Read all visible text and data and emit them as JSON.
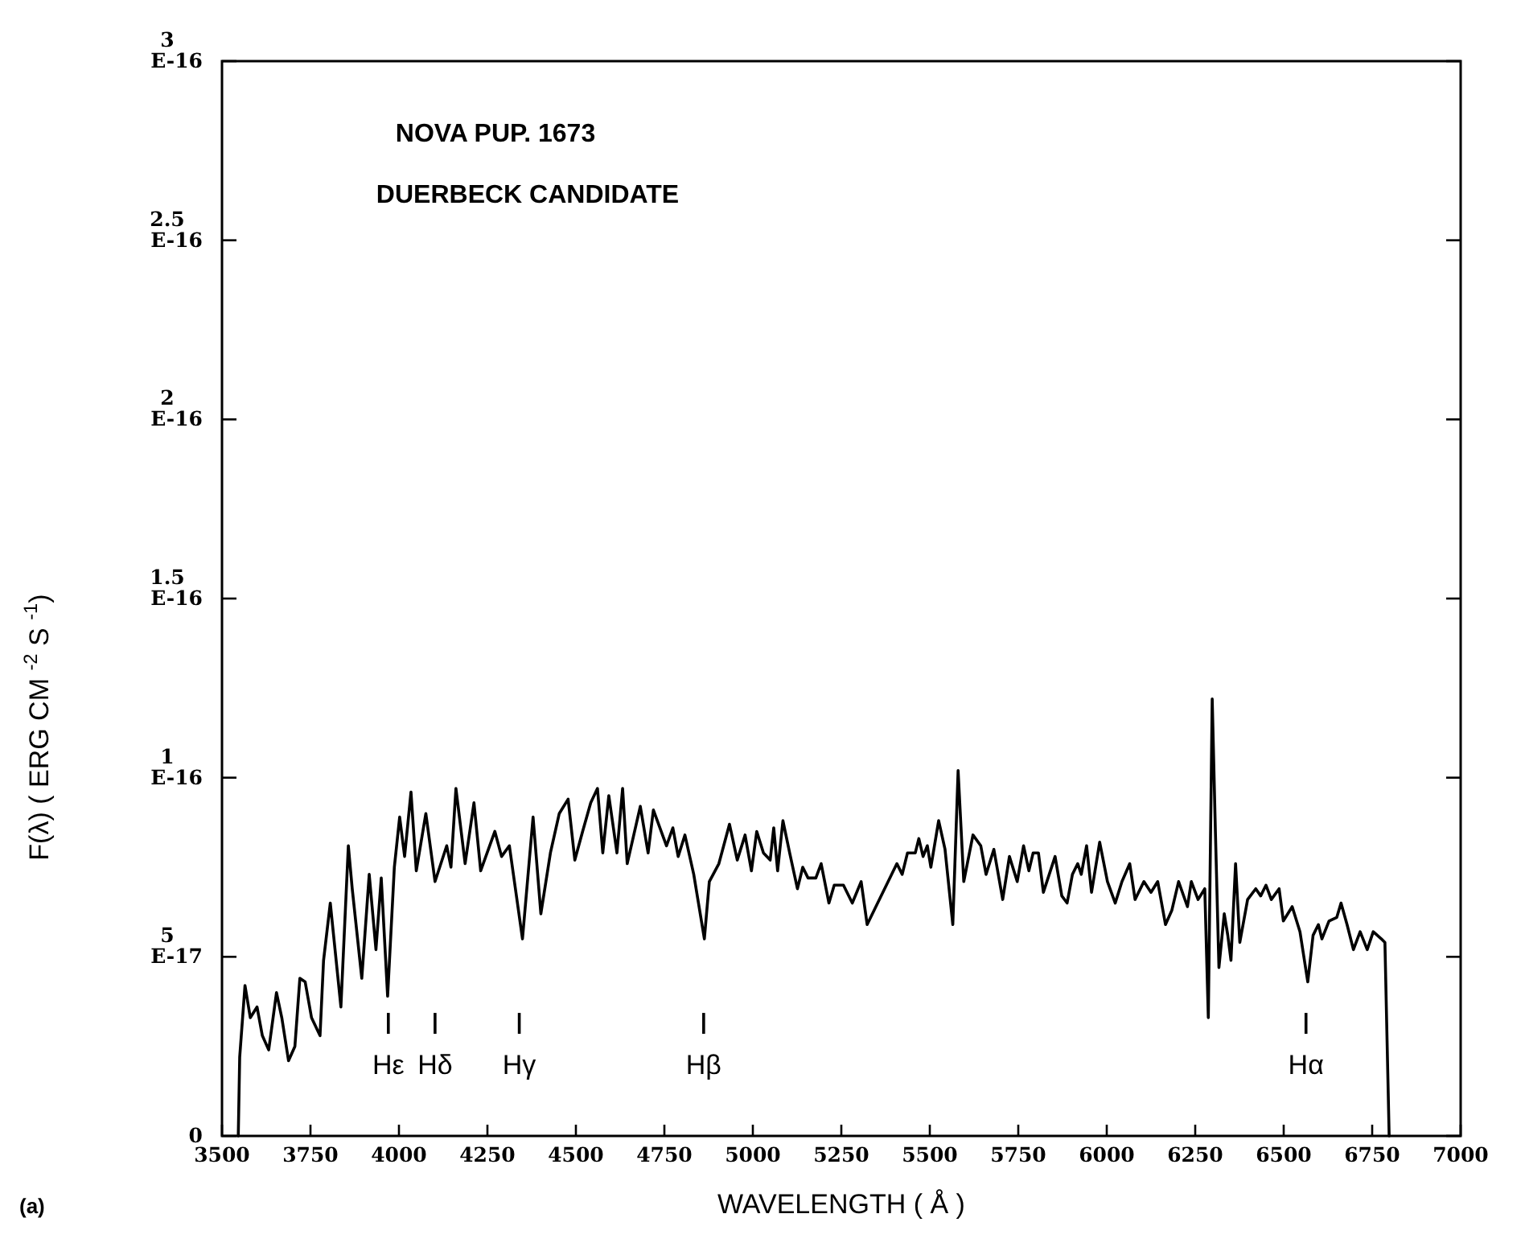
{
  "chart_data": {
    "type": "line",
    "title": "NOVA PUP. 1673",
    "subtitle": "DUERBECK CANDIDATE",
    "xlabel": "WAVELENGTH ( Å )",
    "ylabel": "F(λ) ( ERG CM $^{-2}$ S $^{-1}$)",
    "xlim": [
      3500,
      7000
    ],
    "xticks": [
      3500,
      3750,
      4000,
      4250,
      4500,
      4750,
      5000,
      5250,
      5500,
      5750,
      6000,
      6250,
      6500,
      6750,
      7000
    ],
    "ylim": [
      0,
      3e-16
    ],
    "yticks": [
      {
        "value": 0,
        "label": "0"
      },
      {
        "value": 5e-17,
        "label": "5E-17"
      },
      {
        "value": 1e-16,
        "label": "1E-16"
      },
      {
        "value": 1.5e-16,
        "label": "1.5E-16"
      },
      {
        "value": 2e-16,
        "label": "2E-16"
      },
      {
        "value": 2.5e-16,
        "label": "2.5E-16"
      },
      {
        "value": 3e-16,
        "label": "3E-16"
      }
    ],
    "series": [
      {
        "color": "#000000",
        "x": [
          3546,
          3550,
          3565,
          3580,
          3599,
          3614,
          3632,
          3654,
          3669,
          3688,
          3706,
          3720,
          3735,
          3753,
          3777,
          3787,
          3806,
          3836,
          3857,
          3868,
          3895,
          3916,
          3935,
          3950,
          3968,
          3987,
          4002,
          4016,
          4034,
          4049,
          4076,
          4102,
          4135,
          4147,
          4161,
          4187,
          4212,
          4231,
          4271,
          4290,
          4312,
          4349,
          4379,
          4401,
          4428,
          4453,
          4478,
          4497,
          4519,
          4542,
          4561,
          4576,
          4593,
          4616,
          4632,
          4645,
          4682,
          4704,
          4719,
          4741,
          4756,
          4774,
          4789,
          4808,
          4833,
          4863,
          4877,
          4904,
          4934,
          4956,
          4978,
          4996,
          5011,
          5030,
          5049,
          5059,
          5070,
          5085,
          5104,
          5126,
          5141,
          5156,
          5178,
          5193,
          5215,
          5230,
          5256,
          5281,
          5306,
          5323,
          5407,
          5422,
          5437,
          5459,
          5469,
          5481,
          5493,
          5503,
          5525,
          5543,
          5565,
          5580,
          5596,
          5622,
          5644,
          5659,
          5681,
          5706,
          5725,
          5747,
          5765,
          5780,
          5792,
          5807,
          5821,
          5854,
          5873,
          5888,
          5903,
          5918,
          5928,
          5943,
          5957,
          5980,
          6002,
          6024,
          6043,
          6065,
          6080,
          6105,
          6125,
          6144,
          6166,
          6184,
          6203,
          6228,
          6239,
          6258,
          6277,
          6287,
          6298,
          6307,
          6317,
          6332,
          6342,
          6351,
          6364,
          6376,
          6398,
          6421,
          6435,
          6450,
          6465,
          6487,
          6499,
          6524,
          6546,
          6568,
          6583,
          6598,
          6608,
          6628,
          6650,
          6662,
          6679,
          6697,
          6716,
          6736,
          6753,
          6776,
          6786,
          6798
        ],
        "values": [
          0,
          2.2e-17,
          4.2e-17,
          3.3e-17,
          3.6e-17,
          2.8e-17,
          2.4e-17,
          4e-17,
          3.3e-17,
          2.1e-17,
          2.5e-17,
          4.4e-17,
          4.3e-17,
          3.3e-17,
          2.8e-17,
          4.9e-17,
          6.5e-17,
          3.6e-17,
          8.1e-17,
          6.9e-17,
          4.4e-17,
          7.3e-17,
          5.2e-17,
          7.2e-17,
          3.9e-17,
          7.5e-17,
          8.9e-17,
          7.8e-17,
          9.6e-17,
          7.4e-17,
          9e-17,
          7.1e-17,
          8.1e-17,
          7.5e-17,
          9.7e-17,
          7.6e-17,
          9.3e-17,
          7.4e-17,
          8.5e-17,
          7.8e-17,
          8.1e-17,
          5.5e-17,
          8.9e-17,
          6.2e-17,
          7.9e-17,
          9e-17,
          9.4e-17,
          7.7e-17,
          8.5e-17,
          9.3e-17,
          9.7e-17,
          7.9e-17,
          9.5e-17,
          7.9e-17,
          9.7e-17,
          7.6e-17,
          9.2e-17,
          7.9e-17,
          9.1e-17,
          8.5e-17,
          8.1e-17,
          8.6e-17,
          7.8e-17,
          8.4e-17,
          7.3e-17,
          5.5e-17,
          7.1e-17,
          7.6e-17,
          8.7e-17,
          7.7e-17,
          8.4e-17,
          7.4e-17,
          8.5e-17,
          7.9e-17,
          7.7e-17,
          8.6e-17,
          7.4e-17,
          8.8e-17,
          7.9e-17,
          6.9e-17,
          7.5e-17,
          7.2e-17,
          7.2e-17,
          7.6e-17,
          6.5e-17,
          7e-17,
          7e-17,
          6.5e-17,
          7.1e-17,
          5.9e-17,
          7.6e-17,
          7.3e-17,
          7.9e-17,
          7.9e-17,
          8.3e-17,
          7.8e-17,
          8.1e-17,
          7.5e-17,
          8.8e-17,
          8e-17,
          5.9e-17,
          1.02e-16,
          7.1e-17,
          8.4e-17,
          8.1e-17,
          7.3e-17,
          8e-17,
          6.6e-17,
          7.8e-17,
          7.1e-17,
          8.1e-17,
          7.4e-17,
          7.9e-17,
          7.9e-17,
          6.8e-17,
          7.8e-17,
          6.7e-17,
          6.5e-17,
          7.3e-17,
          7.6e-17,
          7.3e-17,
          8.1e-17,
          6.8e-17,
          8.2e-17,
          7.1e-17,
          6.5e-17,
          7.1e-17,
          7.6e-17,
          6.6e-17,
          7.1e-17,
          6.8e-17,
          7.1e-17,
          5.9e-17,
          6.3e-17,
          7.1e-17,
          6.4e-17,
          7.1e-17,
          6.6e-17,
          6.9e-17,
          3.3e-17,
          1.22e-16,
          8.5e-17,
          4.7e-17,
          6.2e-17,
          5.6e-17,
          4.9e-17,
          7.6e-17,
          5.4e-17,
          6.6e-17,
          6.9e-17,
          6.7e-17,
          7e-17,
          6.6e-17,
          6.9e-17,
          6e-17,
          6.4e-17,
          5.7e-17,
          4.3e-17,
          5.6e-17,
          5.9e-17,
          5.5e-17,
          6e-17,
          6.1e-17,
          6.5e-17,
          5.9e-17,
          5.2e-17,
          5.7e-17,
          5.2e-17,
          5.7e-17,
          5.5e-17,
          5.4e-17,
          0
        ]
      }
    ],
    "ref_lines": [
      {
        "axis": "x",
        "value": 3970,
        "label": "Hε"
      },
      {
        "axis": "x",
        "value": 4102,
        "label": "Hδ"
      },
      {
        "axis": "x",
        "value": 4340,
        "label": "Hγ"
      },
      {
        "axis": "x",
        "value": 4861,
        "label": "Hβ"
      },
      {
        "axis": "x",
        "value": 6563,
        "label": "Hα"
      }
    ],
    "annotations": [
      "(a)"
    ]
  }
}
